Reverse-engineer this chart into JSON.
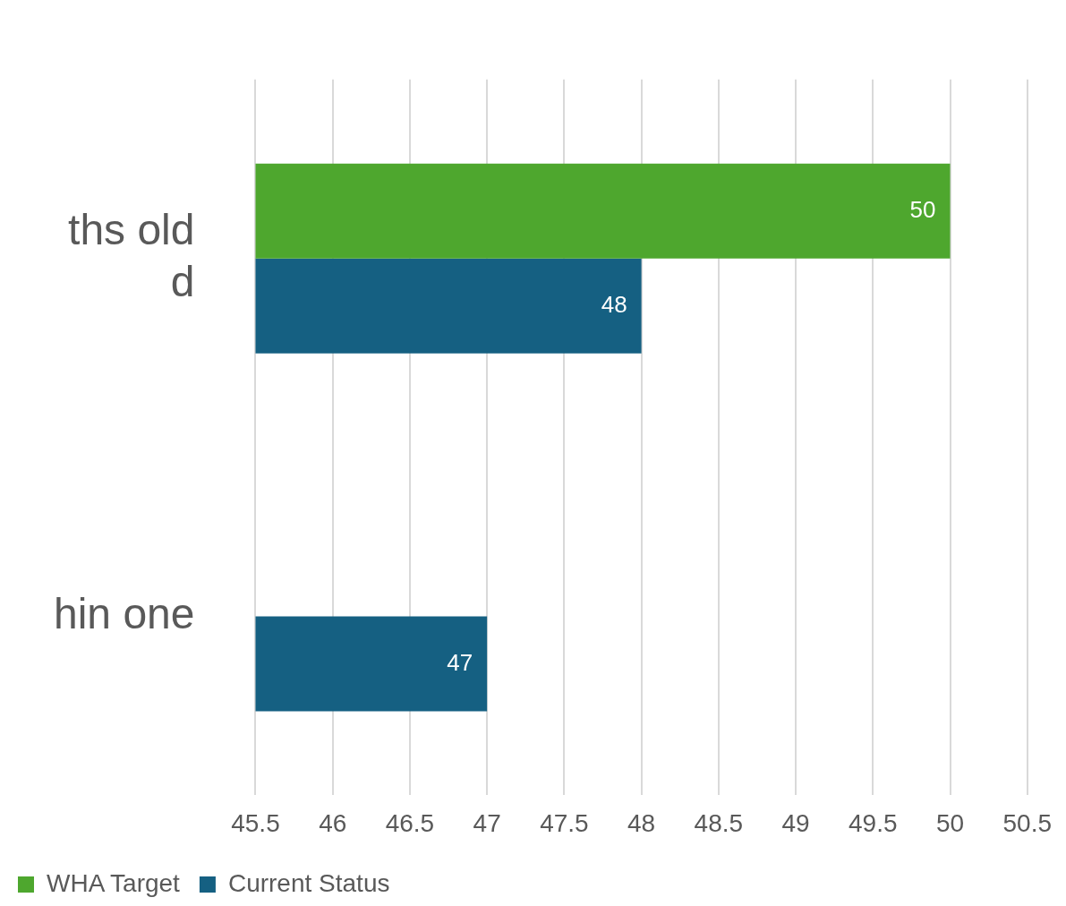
{
  "chart_data": {
    "type": "bar",
    "orientation": "horizontal",
    "categories": [
      "ths old\nd",
      "hin one"
    ],
    "series": [
      {
        "name": "WHA Target",
        "color": "#4ea72e",
        "values": [
          50,
          null
        ]
      },
      {
        "name": "Current Status",
        "color": "#156082",
        "values": [
          48,
          47
        ]
      }
    ],
    "xlim": [
      45.5,
      50.5
    ],
    "xticks": [
      45.5,
      46,
      46.5,
      47,
      47.5,
      48,
      48.5,
      49,
      49.5,
      50,
      50.5
    ],
    "grid": "x",
    "legend": "bottom left",
    "data_labels": true
  }
}
